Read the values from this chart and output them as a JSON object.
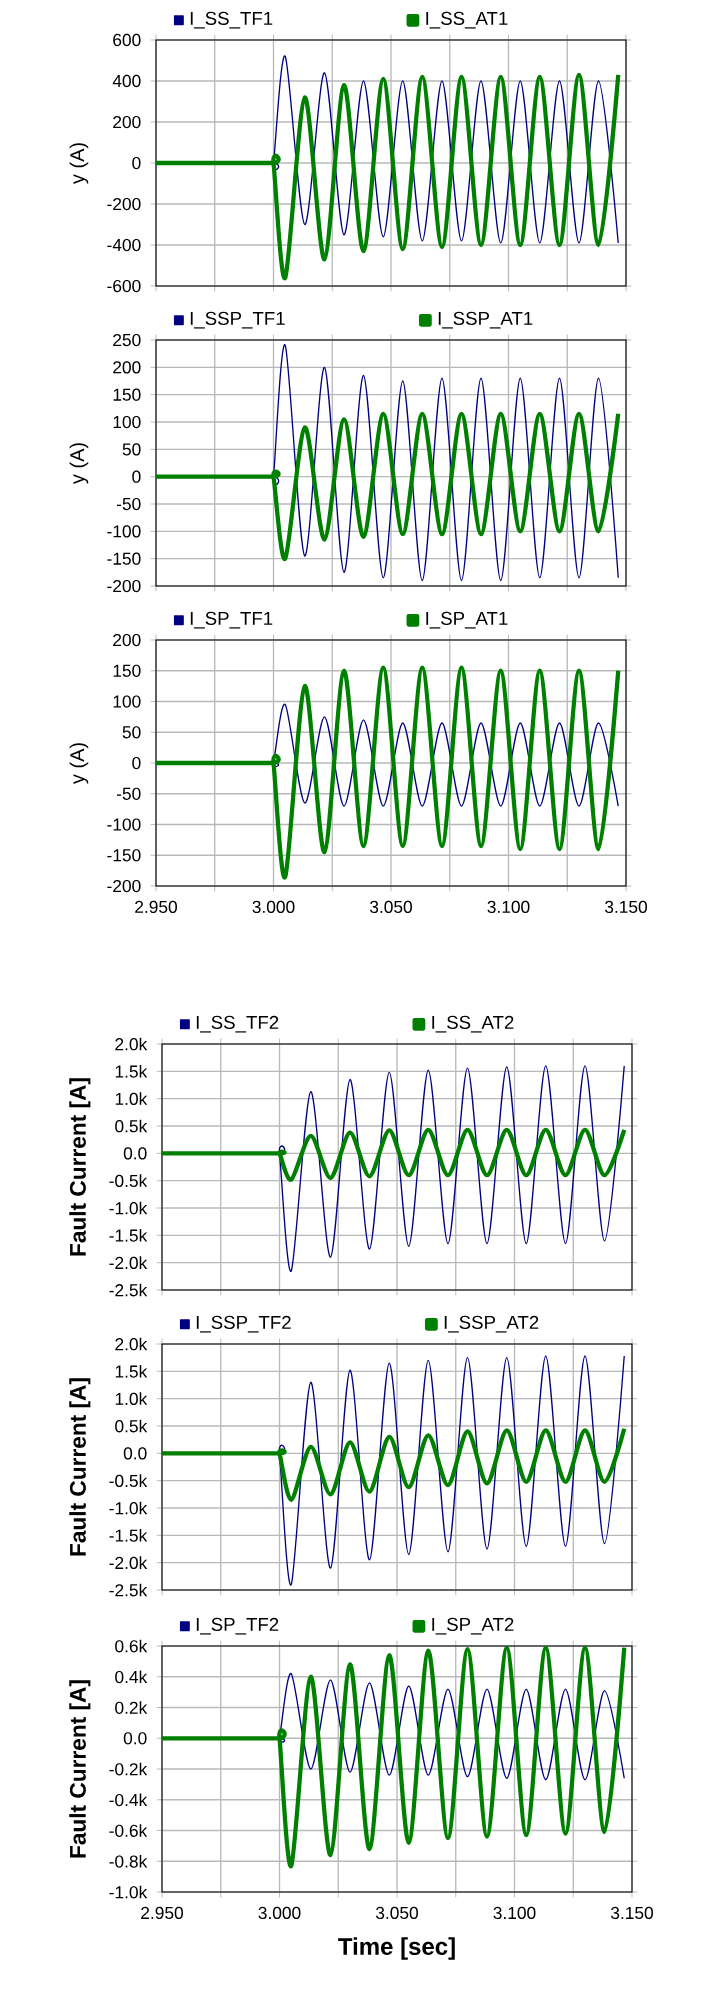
{
  "chart_data": [
    {
      "type": "line",
      "ylabel": "y (A)",
      "xlim": [
        2.95,
        3.15
      ],
      "ylim": [
        -600,
        600
      ],
      "grid": true,
      "legend": "top",
      "tick_labels": "y",
      "xticks": [
        {
          "value": 2.95,
          "label": null
        },
        {
          "value": 2.975,
          "label": null
        },
        {
          "value": 3.0,
          "label": null
        },
        {
          "value": 3.025,
          "label": null
        },
        {
          "value": 3.05,
          "label": null
        },
        {
          "value": 3.075,
          "label": null
        },
        {
          "value": 3.1,
          "label": null
        },
        {
          "value": 3.125,
          "label": null
        },
        {
          "value": 3.15,
          "label": null
        }
      ],
      "yticks": [
        -600,
        -400,
        -200,
        0,
        200,
        400,
        600
      ],
      "x": [
        2.95,
        2.999,
        3.0,
        3.005,
        3.0133,
        3.0217,
        3.03,
        3.0383,
        3.0467,
        3.055,
        3.0633,
        3.0717,
        3.08,
        3.0883,
        3.0967,
        3.105,
        3.1133,
        3.1217,
        3.13,
        3.1383,
        3.1467
      ],
      "series": [
        {
          "name": "I_SS_TF1",
          "color": "#000080",
          "values": [
            0,
            0,
            0,
            520,
            -300,
            440,
            -350,
            400,
            -360,
            400,
            -380,
            400,
            -380,
            400,
            -390,
            400,
            -390,
            400,
            -390,
            400,
            -390
          ]
        },
        {
          "name": "I_SS_AT1",
          "color": "#008000",
          "values": [
            0,
            0,
            0,
            -560,
            320,
            -470,
            380,
            -430,
            410,
            -420,
            420,
            -410,
            420,
            -400,
            420,
            -400,
            420,
            -400,
            430,
            -400,
            430
          ]
        }
      ]
    },
    {
      "type": "line",
      "ylabel": "y (A)",
      "xlim": [
        2.95,
        3.15
      ],
      "ylim": [
        -200,
        250
      ],
      "grid": true,
      "legend": "top",
      "tick_labels": "y",
      "xticks": [
        {
          "value": 2.95,
          "label": null
        },
        {
          "value": 2.975,
          "label": null
        },
        {
          "value": 3.0,
          "label": null
        },
        {
          "value": 3.025,
          "label": null
        },
        {
          "value": 3.05,
          "label": null
        },
        {
          "value": 3.075,
          "label": null
        },
        {
          "value": 3.1,
          "label": null
        },
        {
          "value": 3.125,
          "label": null
        },
        {
          "value": 3.15,
          "label": null
        }
      ],
      "yticks": [
        -200,
        -150,
        -100,
        -50,
        0,
        50,
        100,
        150,
        200,
        250
      ],
      "x": [
        2.95,
        2.999,
        3.0,
        3.005,
        3.0133,
        3.0217,
        3.03,
        3.0383,
        3.0467,
        3.055,
        3.0633,
        3.0717,
        3.08,
        3.0883,
        3.0967,
        3.105,
        3.1133,
        3.1217,
        3.13,
        3.1383,
        3.1467
      ],
      "series": [
        {
          "name": "I_SSP_TF1",
          "color": "#000080",
          "values": [
            0,
            0,
            0,
            240,
            -145,
            200,
            -175,
            185,
            -185,
            175,
            -190,
            180,
            -190,
            180,
            -190,
            180,
            -185,
            180,
            -185,
            180,
            -185
          ]
        },
        {
          "name": "I_SSP_AT1",
          "color": "#008000",
          "values": [
            0,
            0,
            0,
            -150,
            90,
            -115,
            105,
            -110,
            115,
            -105,
            115,
            -105,
            115,
            -105,
            115,
            -100,
            115,
            -100,
            115,
            -100,
            115
          ]
        }
      ]
    },
    {
      "type": "line",
      "ylabel": "y (A)",
      "xlim": [
        2.95,
        3.15
      ],
      "ylim": [
        -200,
        200
      ],
      "grid": true,
      "legend": "top",
      "xticks": [
        {
          "value": 2.95,
          "label": "2.950"
        },
        {
          "value": 2.975,
          "label": null
        },
        {
          "value": 3.0,
          "label": "3.000"
        },
        {
          "value": 3.025,
          "label": null
        },
        {
          "value": 3.05,
          "label": "3.050"
        },
        {
          "value": 3.075,
          "label": null
        },
        {
          "value": 3.1,
          "label": "3.100"
        },
        {
          "value": 3.125,
          "label": null
        },
        {
          "value": 3.15,
          "label": "3.150"
        }
      ],
      "yticks": [
        -200,
        -150,
        -100,
        -50,
        0,
        50,
        100,
        150,
        200
      ],
      "x": [
        2.95,
        2.999,
        3.0,
        3.005,
        3.0133,
        3.0217,
        3.03,
        3.0383,
        3.0467,
        3.055,
        3.0633,
        3.0717,
        3.08,
        3.0883,
        3.0967,
        3.105,
        3.1133,
        3.1217,
        3.13,
        3.1383,
        3.1467
      ],
      "series": [
        {
          "name": "I_SP_TF1",
          "color": "#000080",
          "values": [
            0,
            0,
            0,
            95,
            -65,
            75,
            -70,
            70,
            -70,
            65,
            -70,
            65,
            -70,
            65,
            -70,
            65,
            -70,
            65,
            -70,
            65,
            -70
          ]
        },
        {
          "name": "I_SP_AT1",
          "color": "#008000",
          "values": [
            0,
            0,
            0,
            -185,
            125,
            -145,
            150,
            -135,
            155,
            -135,
            155,
            -135,
            155,
            -135,
            150,
            -140,
            150,
            -140,
            150,
            -140,
            150
          ]
        }
      ]
    },
    {
      "type": "line",
      "ylabel": "Fault Current [A]",
      "xlim": [
        2.95,
        3.15
      ],
      "ylim": [
        -2500,
        2000
      ],
      "grid": true,
      "legend": "top",
      "tick_labels": "y",
      "xticks": [
        {
          "value": 2.95,
          "label": null
        },
        {
          "value": 2.975,
          "label": null
        },
        {
          "value": 3.0,
          "label": null
        },
        {
          "value": 3.025,
          "label": null
        },
        {
          "value": 3.05,
          "label": null
        },
        {
          "value": 3.075,
          "label": null
        },
        {
          "value": 3.1,
          "label": null
        },
        {
          "value": 3.125,
          "label": null
        },
        {
          "value": 3.15,
          "label": null
        }
      ],
      "yticks": [
        {
          "value": -2500,
          "label": "-2.5k"
        },
        {
          "value": -2000,
          "label": "-2.0k"
        },
        {
          "value": -1500,
          "label": "-1.5k"
        },
        {
          "value": -1000,
          "label": "-1.0k"
        },
        {
          "value": -500,
          "label": "-0.5k"
        },
        {
          "value": 0,
          "label": "0.0"
        },
        {
          "value": 500,
          "label": "0.5k"
        },
        {
          "value": 1000,
          "label": "1.0k"
        },
        {
          "value": 1500,
          "label": "1.5k"
        },
        {
          "value": 2000,
          "label": "2.0k"
        }
      ],
      "x": [
        2.95,
        2.999,
        3.0,
        3.005,
        3.0133,
        3.0217,
        3.03,
        3.0383,
        3.0467,
        3.055,
        3.0633,
        3.0717,
        3.08,
        3.0883,
        3.0967,
        3.105,
        3.1133,
        3.1217,
        3.13,
        3.1383,
        3.1467
      ],
      "series": [
        {
          "name": "I_SS_TF2",
          "color": "#000080",
          "values": [
            0,
            0,
            0,
            -2150,
            1130,
            -1900,
            1350,
            -1750,
            1480,
            -1700,
            1520,
            -1650,
            1560,
            -1650,
            1580,
            -1650,
            1600,
            -1650,
            1600,
            -1600,
            1600
          ]
        },
        {
          "name": "I_SS_AT2",
          "color": "#008000",
          "values": [
            0,
            0,
            0,
            -480,
            320,
            -450,
            380,
            -420,
            420,
            -400,
            430,
            -400,
            430,
            -400,
            430,
            -400,
            430,
            -400,
            430,
            -400,
            430
          ]
        }
      ]
    },
    {
      "type": "line",
      "ylabel": "Fault Current [A]",
      "xlim": [
        2.95,
        3.15
      ],
      "ylim": [
        -2500,
        2000
      ],
      "grid": true,
      "legend": "top",
      "tick_labels": "y",
      "xticks": [
        {
          "value": 2.95,
          "label": null
        },
        {
          "value": 2.975,
          "label": null
        },
        {
          "value": 3.0,
          "label": null
        },
        {
          "value": 3.025,
          "label": null
        },
        {
          "value": 3.05,
          "label": null
        },
        {
          "value": 3.075,
          "label": null
        },
        {
          "value": 3.1,
          "label": null
        },
        {
          "value": 3.125,
          "label": null
        },
        {
          "value": 3.15,
          "label": null
        }
      ],
      "yticks": [
        {
          "value": -2500,
          "label": "-2.5k"
        },
        {
          "value": -2000,
          "label": "-2.0k"
        },
        {
          "value": -1500,
          "label": "-1.5k"
        },
        {
          "value": -1000,
          "label": "-1.0k"
        },
        {
          "value": -500,
          "label": "-0.5k"
        },
        {
          "value": 0,
          "label": "0.0"
        },
        {
          "value": 500,
          "label": "0.5k"
        },
        {
          "value": 1000,
          "label": "1.0k"
        },
        {
          "value": 1500,
          "label": "1.5k"
        },
        {
          "value": 2000,
          "label": "2.0k"
        }
      ],
      "x": [
        2.95,
        2.999,
        3.0,
        3.005,
        3.0133,
        3.0217,
        3.03,
        3.0383,
        3.0467,
        3.055,
        3.0633,
        3.0717,
        3.08,
        3.0883,
        3.0967,
        3.105,
        3.1133,
        3.1217,
        3.13,
        3.1383,
        3.1467
      ],
      "series": [
        {
          "name": "I_SSP_TF2",
          "color": "#000080",
          "values": [
            0,
            0,
            0,
            -2400,
            1300,
            -2100,
            1520,
            -1950,
            1650,
            -1850,
            1700,
            -1800,
            1750,
            -1750,
            1750,
            -1700,
            1780,
            -1700,
            1780,
            -1650,
            1780
          ]
        },
        {
          "name": "I_SSP_AT2",
          "color": "#008000",
          "values": [
            0,
            0,
            0,
            -850,
            120,
            -750,
            200,
            -700,
            300,
            -620,
            330,
            -580,
            400,
            -550,
            420,
            -520,
            420,
            -520,
            420,
            -520,
            450
          ]
        }
      ]
    },
    {
      "type": "line",
      "ylabel": "Fault Current [A]",
      "xlabel": "Time [sec]",
      "xlim": [
        2.95,
        3.15
      ],
      "ylim": [
        -1000,
        600
      ],
      "grid": true,
      "legend": "top",
      "xticks": [
        {
          "value": 2.95,
          "label": "2.950"
        },
        {
          "value": 2.975,
          "label": null
        },
        {
          "value": 3.0,
          "label": "3.000"
        },
        {
          "value": 3.025,
          "label": null
        },
        {
          "value": 3.05,
          "label": "3.050"
        },
        {
          "value": 3.075,
          "label": null
        },
        {
          "value": 3.1,
          "label": "3.100"
        },
        {
          "value": 3.125,
          "label": null
        },
        {
          "value": 3.15,
          "label": "3.150"
        }
      ],
      "yticks": [
        {
          "value": -1000,
          "label": "-1.0k"
        },
        {
          "value": -800,
          "label": "-0.8k"
        },
        {
          "value": -600,
          "label": "-0.6k"
        },
        {
          "value": -400,
          "label": "-0.4k"
        },
        {
          "value": -200,
          "label": "-0.2k"
        },
        {
          "value": 0,
          "label": "0.0"
        },
        {
          "value": 200,
          "label": "0.2k"
        },
        {
          "value": 400,
          "label": "0.4k"
        },
        {
          "value": 600,
          "label": "0.6k"
        }
      ],
      "x": [
        2.95,
        2.999,
        3.0,
        3.005,
        3.0133,
        3.0217,
        3.03,
        3.0383,
        3.0467,
        3.055,
        3.0633,
        3.0717,
        3.08,
        3.0883,
        3.0967,
        3.105,
        3.1133,
        3.1217,
        3.13,
        3.1383,
        3.1467
      ],
      "series": [
        {
          "name": "I_SP_TF2",
          "color": "#000080",
          "values": [
            0,
            0,
            0,
            420,
            -200,
            380,
            -220,
            360,
            -240,
            340,
            -240,
            320,
            -250,
            320,
            -260,
            320,
            -270,
            320,
            -270,
            310,
            -260
          ]
        },
        {
          "name": "I_SP_AT2",
          "color": "#008000",
          "values": [
            0,
            0,
            0,
            -830,
            400,
            -760,
            480,
            -720,
            540,
            -680,
            570,
            -650,
            580,
            -640,
            590,
            -630,
            590,
            -620,
            590,
            -610,
            590
          ]
        }
      ]
    }
  ]
}
